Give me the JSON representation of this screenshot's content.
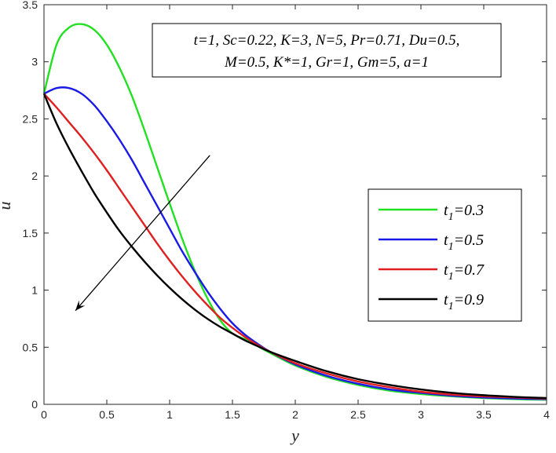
{
  "chart_data": {
    "type": "line",
    "xlabel": "y",
    "ylabel": "u",
    "xlim": [
      0,
      4
    ],
    "ylim": [
      0,
      3.5
    ],
    "xticks": [
      "0",
      "0.5",
      "1",
      "1.5",
      "2",
      "2.5",
      "3",
      "3.5",
      "4"
    ],
    "yticks": [
      "0",
      "0.5",
      "1",
      "1.5",
      "2",
      "2.5",
      "3",
      "3.5"
    ],
    "grid": false,
    "legend_position": "right",
    "annotation": {
      "line1": "t=1, Sc=0.22, K=3, N=5, Pr=0.71, Du=0.5,",
      "line2": "M=0.5, K*=1, Gr=1, Gm=5, a=1"
    },
    "arrow": {
      "from": [
        1.32,
        2.18
      ],
      "to": [
        0.25,
        0.82
      ]
    },
    "series": [
      {
        "name": "t",
        "subscript": "1",
        "value_text": "=0.3",
        "color": "#22e022",
        "x": [
          0,
          0.1,
          0.2,
          0.3,
          0.4,
          0.5,
          0.6,
          0.7,
          0.8,
          0.9,
          1.0,
          1.1,
          1.2,
          1.3,
          1.4,
          1.5,
          1.6,
          1.7,
          1.8,
          2.0,
          2.25,
          2.5,
          2.75,
          3.0,
          3.25,
          3.5,
          3.75,
          4.0
        ],
        "y": [
          2.72,
          3.15,
          3.3,
          3.33,
          3.28,
          3.15,
          2.95,
          2.7,
          2.4,
          2.08,
          1.76,
          1.45,
          1.17,
          0.93,
          0.74,
          0.62,
          0.57,
          0.51,
          0.45,
          0.34,
          0.24,
          0.17,
          0.12,
          0.09,
          0.07,
          0.055,
          0.045,
          0.04
        ]
      },
      {
        "name": "t",
        "subscript": "1",
        "value_text": "=0.5",
        "color": "#1a1ae6",
        "x": [
          0,
          0.1,
          0.2,
          0.3,
          0.4,
          0.5,
          0.6,
          0.7,
          0.8,
          0.9,
          1.0,
          1.1,
          1.2,
          1.3,
          1.4,
          1.5,
          1.6,
          1.7,
          1.8,
          2.0,
          2.25,
          2.5,
          2.75,
          3.0,
          3.25,
          3.5,
          3.75,
          4.0
        ],
        "y": [
          2.72,
          2.77,
          2.77,
          2.72,
          2.62,
          2.48,
          2.32,
          2.14,
          1.94,
          1.74,
          1.54,
          1.34,
          1.16,
          0.99,
          0.84,
          0.71,
          0.61,
          0.53,
          0.46,
          0.35,
          0.25,
          0.18,
          0.13,
          0.1,
          0.075,
          0.06,
          0.05,
          0.045
        ]
      },
      {
        "name": "t",
        "subscript": "1",
        "value_text": "=0.7",
        "color": "#e02020",
        "x": [
          0,
          0.1,
          0.2,
          0.3,
          0.4,
          0.5,
          0.6,
          0.7,
          0.8,
          0.9,
          1.0,
          1.1,
          1.2,
          1.3,
          1.4,
          1.5,
          1.6,
          1.7,
          1.8,
          2.0,
          2.25,
          2.5,
          2.75,
          3.0,
          3.25,
          3.5,
          3.75,
          4.0
        ],
        "y": [
          2.72,
          2.6,
          2.47,
          2.34,
          2.2,
          2.05,
          1.89,
          1.73,
          1.57,
          1.41,
          1.26,
          1.12,
          0.99,
          0.87,
          0.76,
          0.67,
          0.59,
          0.52,
          0.46,
          0.36,
          0.27,
          0.2,
          0.15,
          0.11,
          0.085,
          0.07,
          0.06,
          0.05
        ]
      },
      {
        "name": "t",
        "subscript": "1",
        "value_text": "=0.9",
        "color": "#000000",
        "x": [
          0,
          0.1,
          0.2,
          0.3,
          0.4,
          0.5,
          0.6,
          0.7,
          0.8,
          0.9,
          1.0,
          1.1,
          1.2,
          1.3,
          1.4,
          1.5,
          1.6,
          1.7,
          1.8,
          2.0,
          2.25,
          2.5,
          2.75,
          3.0,
          3.25,
          3.5,
          3.75,
          4.0
        ],
        "y": [
          2.72,
          2.46,
          2.24,
          2.04,
          1.85,
          1.68,
          1.52,
          1.38,
          1.25,
          1.13,
          1.02,
          0.92,
          0.83,
          0.75,
          0.68,
          0.62,
          0.56,
          0.51,
          0.46,
          0.38,
          0.29,
          0.22,
          0.17,
          0.13,
          0.1,
          0.08,
          0.065,
          0.055
        ]
      }
    ]
  }
}
